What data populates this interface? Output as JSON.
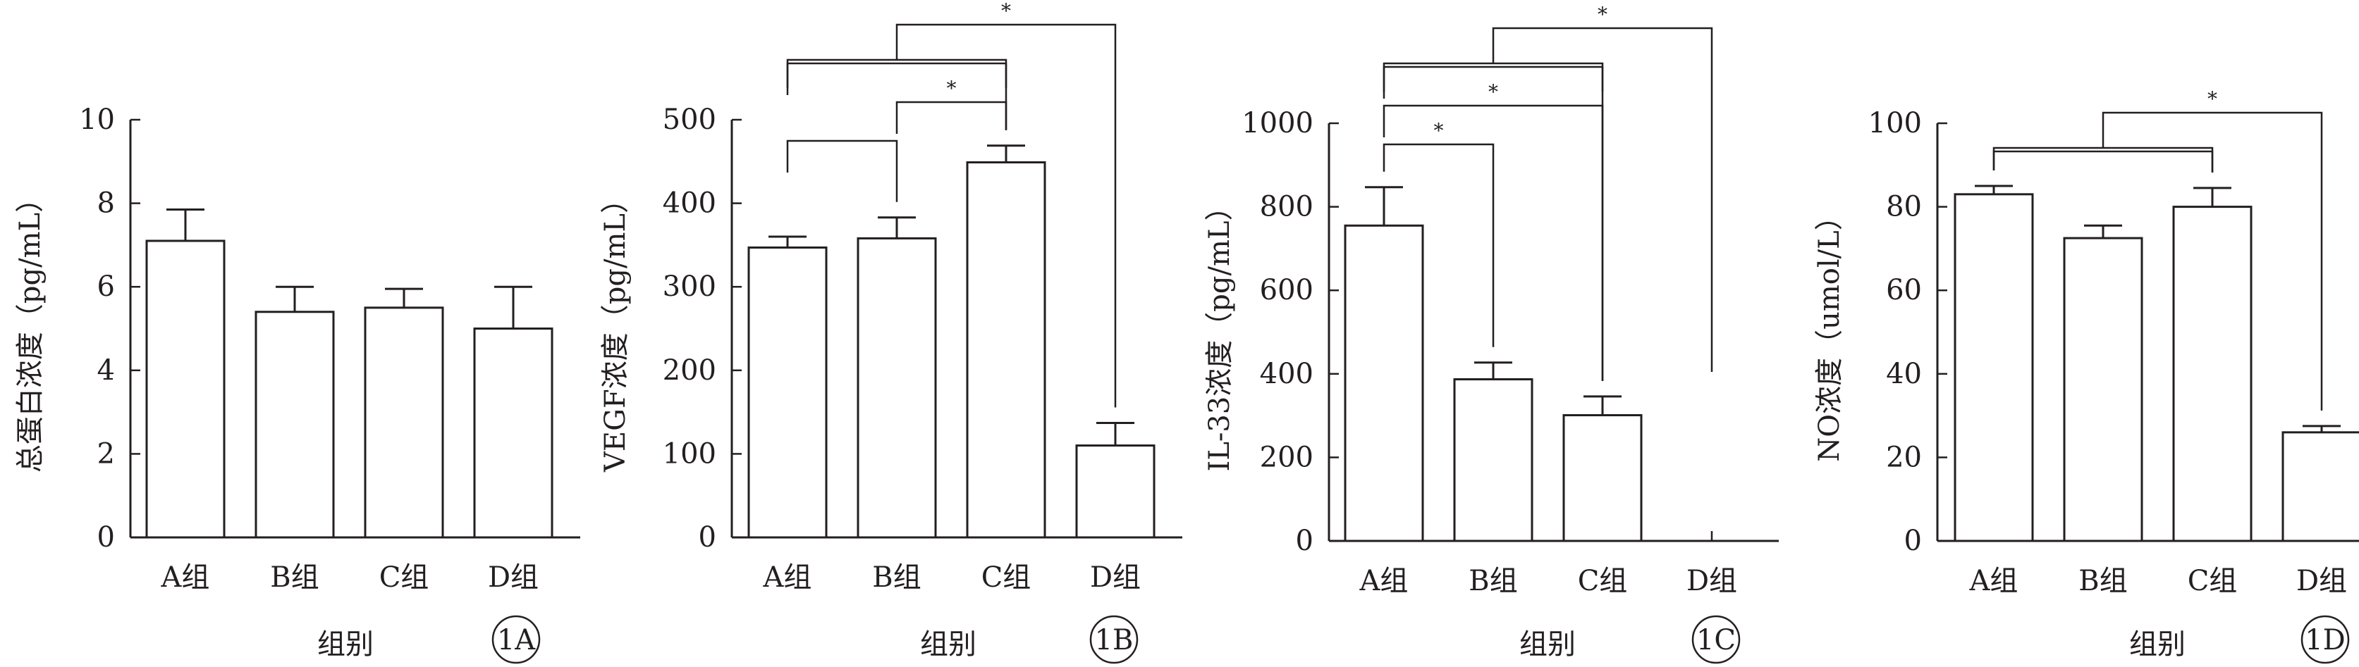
{
  "colors": {
    "ink": "#231f20",
    "bar_fill": "#ffffff"
  },
  "chart_data": [
    {
      "id": "1A",
      "type": "bar",
      "categories": [
        "A组",
        "B组",
        "C组",
        "D组"
      ],
      "values": [
        7.1,
        5.4,
        5.5,
        5.0
      ],
      "errors": [
        0.75,
        0.6,
        0.45,
        1.0
      ],
      "ylabel": "总蛋白浓度（pg/mL）",
      "xlabel": "组别",
      "ylim": [
        0,
        10
      ],
      "yticks": [
        "0",
        "2",
        "4",
        "6",
        "8",
        "10"
      ],
      "panel_label": "1A",
      "significance": []
    },
    {
      "id": "1B",
      "type": "bar",
      "categories": [
        "A组",
        "B组",
        "C组",
        "D组"
      ],
      "values": [
        347,
        358,
        449,
        110
      ],
      "errors": [
        13,
        25,
        20,
        27
      ],
      "ylabel": "VEGF浓度（pg/mL）",
      "xlabel": "组别",
      "ylim": [
        0,
        500
      ],
      "yticks": [
        "0",
        "100",
        "200",
        "300",
        "400",
        "500"
      ],
      "panel_label": "1B",
      "significance": [
        {
          "from": [
            0
          ],
          "to": [
            1
          ],
          "label": "",
          "level": 1
        },
        {
          "from": [
            1
          ],
          "to": [
            2
          ],
          "label": "*",
          "level": 2
        },
        {
          "from": [
            0
          ],
          "to": [
            2
          ],
          "label": "",
          "level": 3
        },
        {
          "from": [
            0,
            2
          ],
          "to": [
            3
          ],
          "label": "*",
          "level": 4
        }
      ]
    },
    {
      "id": "1C",
      "type": "bar",
      "categories": [
        "A组",
        "B组",
        "C组",
        "D组"
      ],
      "values": [
        755,
        387,
        301,
        0
      ],
      "errors": [
        92,
        40,
        45,
        0
      ],
      "ylabel": "IL-33浓度（pg/mL）",
      "xlabel": "组别",
      "ylim": [
        0,
        1000
      ],
      "yticks": [
        "0",
        "200",
        "400",
        "600",
        "800",
        "1000"
      ],
      "panel_label": "1C",
      "significance": [
        {
          "from": [
            0
          ],
          "to": [
            1
          ],
          "label": "*",
          "level": 1
        },
        {
          "from": [
            0
          ],
          "to": [
            2
          ],
          "label": "*",
          "level": 2
        },
        {
          "from": [
            0
          ],
          "to": [
            2
          ],
          "label": "",
          "level": 3
        },
        {
          "from": [
            0,
            2
          ],
          "to": [
            3
          ],
          "label": "*",
          "level": 4
        }
      ]
    },
    {
      "id": "1D",
      "type": "bar",
      "categories": [
        "A组",
        "B组",
        "C组",
        "D组"
      ],
      "values": [
        83,
        72.5,
        80,
        26
      ],
      "errors": [
        2,
        3,
        4.5,
        1.5
      ],
      "ylabel": "NO浓度（umol/L）",
      "xlabel": "组别",
      "ylim": [
        0,
        100
      ],
      "yticks": [
        "0",
        "20",
        "40",
        "60",
        "80",
        "100"
      ],
      "panel_label": "1D",
      "significance": [
        {
          "from": [
            0
          ],
          "to": [
            2
          ],
          "label": "",
          "level": 1
        },
        {
          "from": [
            0,
            2
          ],
          "to": [
            3
          ],
          "label": "*",
          "level": 2
        }
      ]
    }
  ]
}
